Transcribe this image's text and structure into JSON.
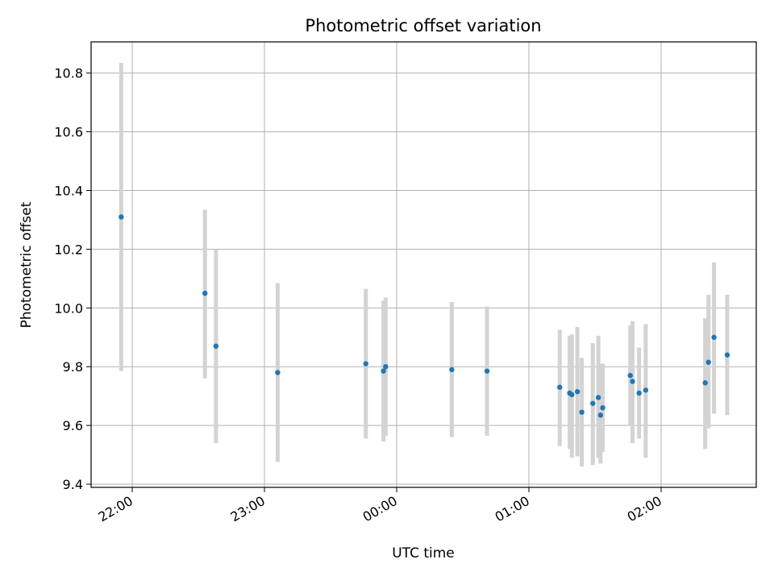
{
  "chart_data": {
    "type": "scatter",
    "title": "Photometric offset variation",
    "xlabel": "UTC time",
    "ylabel": "Photometric offset",
    "x_ticks": [
      "22:00",
      "23:00",
      "00:00",
      "01:00",
      "02:00"
    ],
    "y_ticks": [
      "9.4",
      "9.6",
      "9.8",
      "10.0",
      "10.2",
      "10.4",
      "10.6",
      "10.8"
    ],
    "grid": true,
    "marker_color": "#1f77b4",
    "errorbar_color": "#d3d3d3",
    "points": [
      {
        "time": "21:55",
        "offset": 10.31,
        "err_low": 9.785,
        "err_high": 10.835
      },
      {
        "time": "22:33",
        "offset": 10.05,
        "err_low": 9.76,
        "err_high": 10.335
      },
      {
        "time": "22:38",
        "offset": 9.87,
        "err_low": 9.54,
        "err_high": 10.2
      },
      {
        "time": "23:06",
        "offset": 9.78,
        "err_low": 9.475,
        "err_high": 10.085
      },
      {
        "time": "23:46",
        "offset": 9.81,
        "err_low": 9.555,
        "err_high": 10.065
      },
      {
        "time": "23:54",
        "offset": 9.785,
        "err_low": 9.545,
        "err_high": 10.025
      },
      {
        "time": "23:55",
        "offset": 9.8,
        "err_low": 9.565,
        "err_high": 10.035
      },
      {
        "time": "00:25",
        "offset": 9.79,
        "err_low": 9.56,
        "err_high": 10.02
      },
      {
        "time": "00:41",
        "offset": 9.785,
        "err_low": 9.565,
        "err_high": 10.005
      },
      {
        "time": "01:14",
        "offset": 9.73,
        "err_low": 9.53,
        "err_high": 9.925
      },
      {
        "time": "01:18.5",
        "offset": 9.71,
        "err_low": 9.52,
        "err_high": 9.905
      },
      {
        "time": "01:19.5",
        "offset": 9.705,
        "err_low": 9.49,
        "err_high": 9.91
      },
      {
        "time": "01:22",
        "offset": 9.715,
        "err_low": 9.495,
        "err_high": 9.935
      },
      {
        "time": "01:24",
        "offset": 9.645,
        "err_low": 9.46,
        "err_high": 9.83
      },
      {
        "time": "01:29",
        "offset": 9.675,
        "err_low": 9.465,
        "err_high": 9.88
      },
      {
        "time": "01:31.5",
        "offset": 9.695,
        "err_low": 9.49,
        "err_high": 9.905
      },
      {
        "time": "01:32.5",
        "offset": 9.635,
        "err_low": 9.47,
        "err_high": 9.81
      },
      {
        "time": "01:33.5",
        "offset": 9.66,
        "err_low": 9.51,
        "err_high": 9.81
      },
      {
        "time": "01:46",
        "offset": 9.77,
        "err_low": 9.6,
        "err_high": 9.94
      },
      {
        "time": "01:47",
        "offset": 9.75,
        "err_low": 9.54,
        "err_high": 9.955
      },
      {
        "time": "01:50",
        "offset": 9.71,
        "err_low": 9.555,
        "err_high": 9.865
      },
      {
        "time": "01:53",
        "offset": 9.72,
        "err_low": 9.49,
        "err_high": 9.945
      },
      {
        "time": "02:20",
        "offset": 9.745,
        "err_low": 9.52,
        "err_high": 9.965
      },
      {
        "time": "02:21.5",
        "offset": 9.815,
        "err_low": 9.59,
        "err_high": 10.045
      },
      {
        "time": "02:24",
        "offset": 9.9,
        "err_low": 9.64,
        "err_high": 10.155
      },
      {
        "time": "02:30",
        "offset": 9.84,
        "err_low": 9.635,
        "err_high": 10.045
      }
    ]
  }
}
